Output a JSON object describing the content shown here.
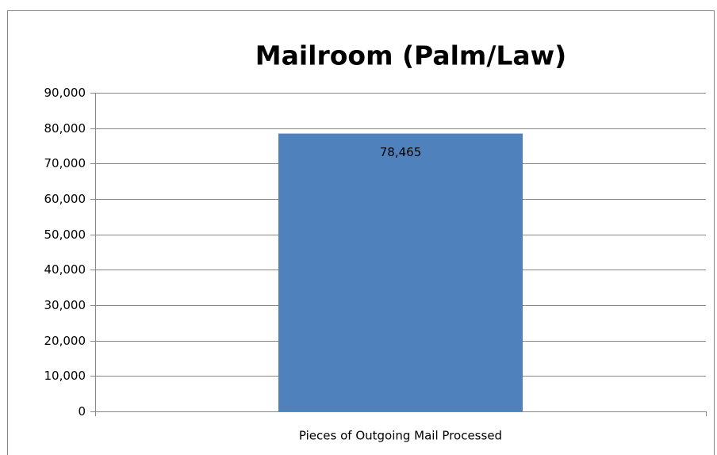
{
  "chart_data": {
    "type": "bar",
    "title": "Mailroom (Palm/Law)",
    "categories": [
      "Pieces of Outgoing Mail Processed"
    ],
    "values": [
      78465
    ],
    "value_labels": [
      "78,465"
    ],
    "color": "#4f81bd",
    "ylim": [
      0,
      90000
    ],
    "yticks": [
      0,
      {
        "value": 10000,
        "label": "10,000"
      },
      {
        "value": 20000,
        "label": "20,000"
      },
      {
        "value": 30000,
        "label": "30,000"
      },
      {
        "value": 40000,
        "label": "40,000"
      },
      {
        "value": 50000,
        "label": "50,000"
      },
      {
        "value": 60000,
        "label": "60,000"
      },
      {
        "value": 70000,
        "label": "70,000"
      },
      {
        "value": 80000,
        "label": "80,000"
      },
      {
        "value": 90000,
        "label": "90,000"
      }
    ],
    "grid": true
  }
}
